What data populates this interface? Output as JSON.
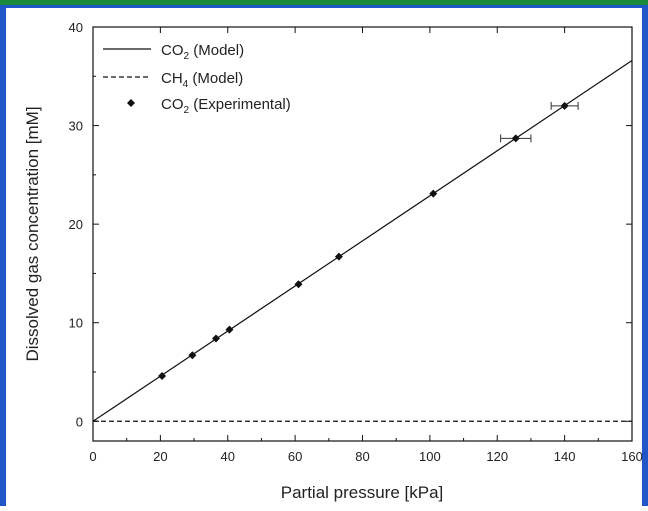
{
  "chart_data": {
    "type": "line",
    "xlabel": "Partial pressure [kPa]",
    "ylabel": "Dissolved gas concentration [mM]",
    "xlim": [
      0,
      160
    ],
    "ylim": [
      -2,
      40
    ],
    "xticks": [
      "0",
      "20",
      "40",
      "60",
      "80",
      "100",
      "120",
      "140",
      "160"
    ],
    "yticks": [
      "0",
      "10",
      "20",
      "30",
      "40"
    ],
    "grid": false,
    "legend_position": "top-left",
    "accent_color": "#1b8a3a",
    "border_color": "#1f57c9",
    "series": [
      {
        "name": "CO2 (Model)",
        "label_main": "CO",
        "label_sub": "2",
        "label_tail": " (Model)",
        "style": "solid",
        "x": [
          0,
          160
        ],
        "y": [
          0,
          36.6
        ]
      },
      {
        "name": "CH4 (Model)",
        "label_main": "CH",
        "label_sub": "4",
        "label_tail": " (Model)",
        "style": "dashed",
        "x": [
          0,
          160
        ],
        "y": [
          0,
          0
        ]
      },
      {
        "name": "CO2 (Experimental)",
        "label_main": "CO",
        "label_sub": "2",
        "label_tail": " (Experimental)",
        "style": "markers",
        "x": [
          20.5,
          29.5,
          36.5,
          40.5,
          61,
          73,
          101,
          125.5,
          140
        ],
        "y": [
          4.6,
          6.7,
          8.4,
          9.3,
          13.9,
          16.7,
          23.1,
          28.7,
          32.0
        ],
        "x_error": [
          0,
          0,
          0,
          0,
          0,
          0,
          0,
          4.5,
          4.0
        ]
      }
    ]
  }
}
